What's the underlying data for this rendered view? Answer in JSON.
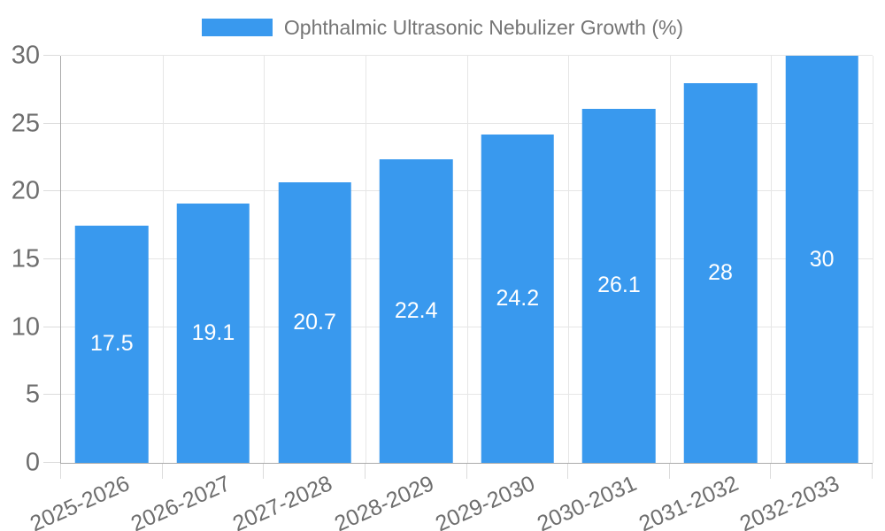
{
  "colors": {
    "bar": "#3999ee",
    "bar_label": "#ffffff",
    "axis_text": "#6e6e6e",
    "legend_text": "#757575",
    "gridline": "#e6e6e6",
    "axis_line": "#ababab",
    "tick": "#dcdcdc",
    "background": "#ffffff"
  },
  "chart_data": {
    "type": "bar",
    "title": "",
    "categories": [
      "2025-2026",
      "2026-2027",
      "2027-2028",
      "2028-2029",
      "2029-2030",
      "2030-2031",
      "2031-2032",
      "2032-2033"
    ],
    "series": [
      {
        "name": "Ophthalmic Ultrasonic Nebulizer Growth (%)",
        "values": [
          17.5,
          19.1,
          20.7,
          22.4,
          24.2,
          26.1,
          28,
          30
        ]
      }
    ],
    "data_labels": [
      "17.5",
      "19.1",
      "20.7",
      "22.4",
      "24.2",
      "26.1",
      "28",
      "30"
    ],
    "xlabel": "",
    "ylabel": "",
    "ylim": [
      0,
      30
    ],
    "yticks": [
      0,
      5,
      10,
      15,
      20,
      25,
      30
    ],
    "grid": true,
    "vertical_grid": true,
    "legend_position": "top-center",
    "x_tick_rotation_deg": -24,
    "data_label_position": "center-inside-bar"
  }
}
